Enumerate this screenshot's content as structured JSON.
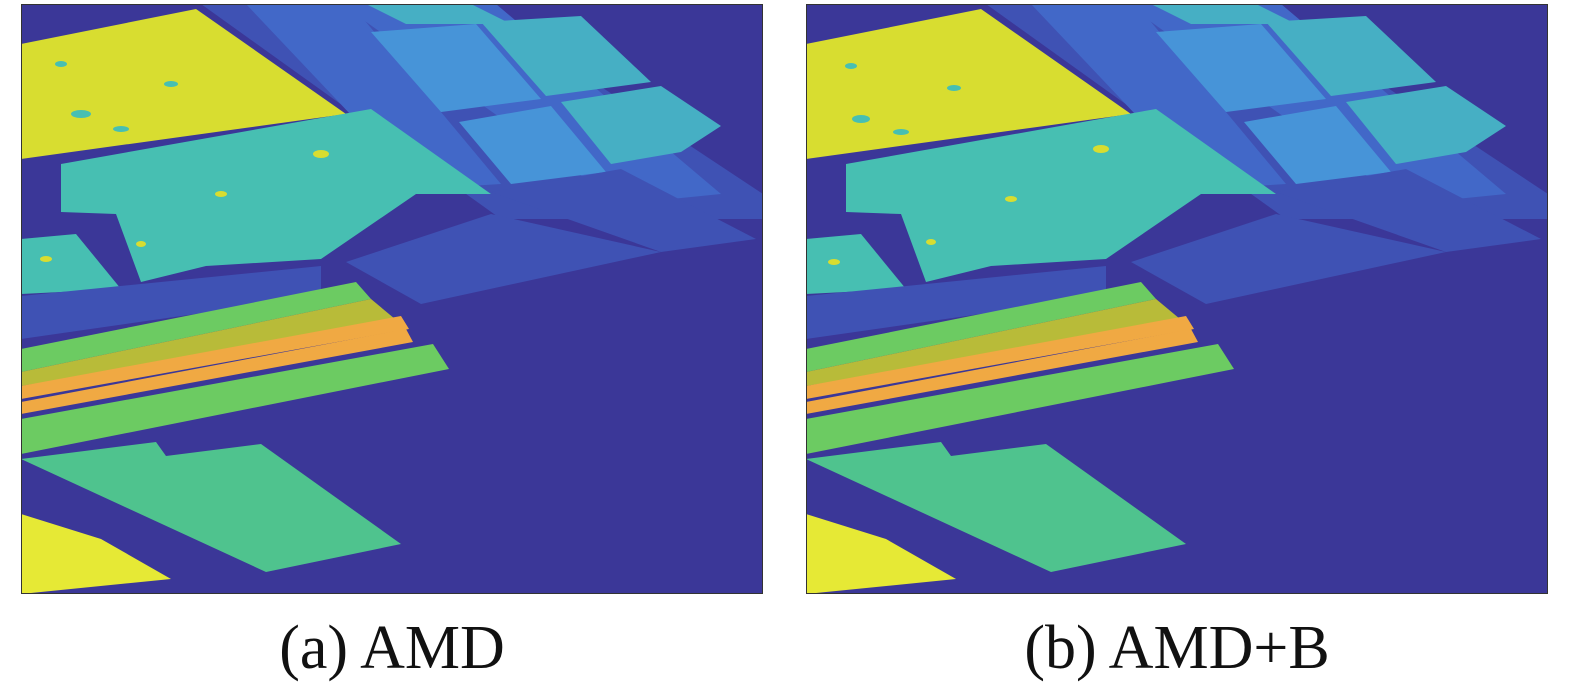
{
  "panels": [
    {
      "id": "a",
      "caption": "(a) AMD"
    },
    {
      "id": "b",
      "caption": "(b) AMD+B"
    }
  ],
  "colors": {
    "background": "#3b3798",
    "road": "#3a3fa8",
    "strip_dark": "#3f52b4",
    "strip_mid": "#4268c8",
    "field_sky": "#4794d8",
    "field_teal": "#46afc4",
    "field_cyan": "#47bfb2",
    "field_green": "#4fc38e",
    "field_lime": "#6ccb62",
    "field_olive": "#b8bb39",
    "field_orange": "#f0a943",
    "field_yellow": "#d8dd30",
    "field_bright_yellow": "#e6e935",
    "frame": "#333333"
  }
}
